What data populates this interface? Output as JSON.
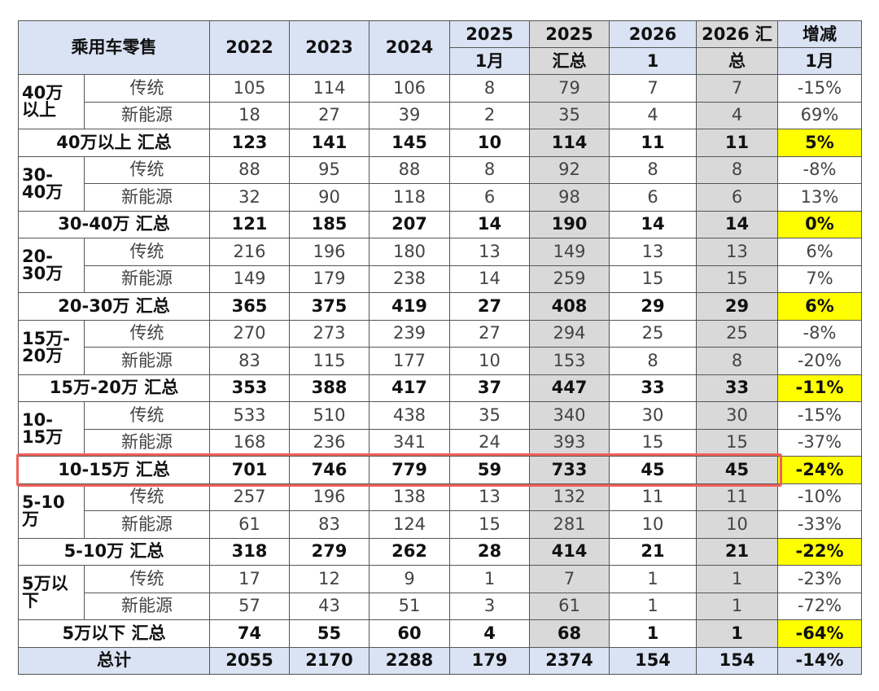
{
  "header": {
    "title": "乘用车零售",
    "years": [
      "2022",
      "2023",
      "2024"
    ],
    "cols": [
      [
        "2025",
        "1月"
      ],
      [
        "2025",
        "汇总"
      ],
      [
        "2026",
        "1"
      ],
      [
        "2026 汇",
        "总"
      ],
      [
        "增减",
        "1月"
      ]
    ]
  },
  "groups": [
    {
      "label": [
        "40万",
        "以上"
      ],
      "rows": [
        {
          "type": "传统",
          "cells": [
            105,
            114,
            106,
            8,
            79,
            7,
            7,
            "-15%"
          ]
        },
        {
          "type": "新能源",
          "cells": [
            18,
            27,
            39,
            2,
            35,
            4,
            4,
            "69%"
          ]
        }
      ],
      "total": {
        "label": "40万以上 汇总",
        "cells": [
          123,
          141,
          145,
          10,
          114,
          11,
          11,
          "5%"
        ]
      }
    },
    {
      "label": [
        "30-",
        "40万"
      ],
      "rows": [
        {
          "type": "传统",
          "cells": [
            88,
            95,
            88,
            8,
            92,
            8,
            8,
            "-8%"
          ]
        },
        {
          "type": "新能源",
          "cells": [
            32,
            90,
            118,
            6,
            98,
            6,
            6,
            "13%"
          ]
        }
      ],
      "total": {
        "label": "30-40万 汇总",
        "cells": [
          121,
          185,
          207,
          14,
          190,
          14,
          14,
          "0%"
        ]
      }
    },
    {
      "label": [
        "20-",
        "30万"
      ],
      "rows": [
        {
          "type": "传统",
          "cells": [
            216,
            196,
            180,
            13,
            149,
            13,
            13,
            "6%"
          ]
        },
        {
          "type": "新能源",
          "cells": [
            149,
            179,
            238,
            14,
            259,
            15,
            15,
            "7%"
          ]
        }
      ],
      "total": {
        "label": "20-30万 汇总",
        "cells": [
          365,
          375,
          419,
          27,
          408,
          29,
          29,
          "6%"
        ]
      }
    },
    {
      "label": [
        "15万-",
        "20万"
      ],
      "rows": [
        {
          "type": "传统",
          "cells": [
            270,
            273,
            239,
            27,
            294,
            25,
            25,
            "-8%"
          ]
        },
        {
          "type": "新能源",
          "cells": [
            83,
            115,
            177,
            10,
            153,
            8,
            8,
            "-20%"
          ]
        }
      ],
      "total": {
        "label": "15万-20万 汇总",
        "cells": [
          353,
          388,
          417,
          37,
          447,
          33,
          33,
          "-11%"
        ]
      }
    },
    {
      "label": [
        "10-",
        "15万"
      ],
      "rows": [
        {
          "type": "传统",
          "cells": [
            533,
            510,
            438,
            35,
            340,
            30,
            30,
            "-15%"
          ]
        },
        {
          "type": "新能源",
          "cells": [
            168,
            236,
            341,
            24,
            393,
            15,
            15,
            "-37%"
          ]
        }
      ],
      "total": {
        "label": "10-15万 汇总",
        "cells": [
          701,
          746,
          779,
          59,
          733,
          45,
          45,
          "-24%"
        ]
      }
    },
    {
      "label": [
        "5-10",
        "万"
      ],
      "rows": [
        {
          "type": "传统",
          "cells": [
            257,
            196,
            138,
            13,
            132,
            11,
            11,
            "-10%"
          ]
        },
        {
          "type": "新能源",
          "cells": [
            61,
            83,
            124,
            15,
            281,
            10,
            10,
            "-33%"
          ]
        }
      ],
      "total": {
        "label": "5-10万 汇总",
        "cells": [
          318,
          279,
          262,
          28,
          414,
          21,
          21,
          "-22%"
        ]
      }
    },
    {
      "label": [
        "5万以",
        "下"
      ],
      "rows": [
        {
          "type": "传统",
          "cells": [
            17,
            12,
            9,
            1,
            7,
            1,
            1,
            "-23%"
          ]
        },
        {
          "type": "新能源",
          "cells": [
            57,
            43,
            51,
            3,
            61,
            1,
            1,
            "-72%"
          ]
        }
      ],
      "total": {
        "label": "5万以下 汇总",
        "cells": [
          74,
          55,
          60,
          4,
          68,
          1,
          1,
          "-64%"
        ]
      }
    }
  ],
  "grand_total": {
    "label": "总计",
    "cells": [
      2055,
      2170,
      2288,
      179,
      2374,
      154,
      154,
      "-14%"
    ]
  }
}
